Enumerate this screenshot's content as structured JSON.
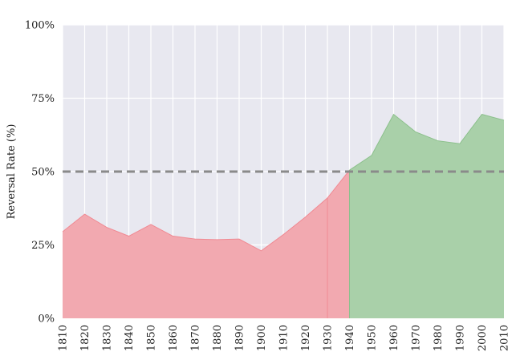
{
  "chart_data": {
    "type": "area",
    "xlabel": "",
    "ylabel": "Reversal Rate (%)",
    "x": [
      1810,
      1820,
      1830,
      1840,
      1850,
      1860,
      1870,
      1880,
      1890,
      1900,
      1910,
      1920,
      1930,
      1940,
      1950,
      1960,
      1970,
      1980,
      1990,
      2000,
      2010
    ],
    "values": [
      29.5,
      35.5,
      31,
      28,
      32,
      28,
      27,
      26.8,
      27,
      23,
      28.5,
      34.5,
      41,
      50.5,
      55.5,
      69.5,
      63.5,
      60.5,
      59.5,
      69.5,
      67.5
    ],
    "ylim": [
      0,
      100
    ],
    "xlim": [
      1810,
      2010
    ],
    "yticks": [
      0,
      25,
      50,
      75,
      100
    ],
    "ytick_labels": [
      "0%",
      "25%",
      "50%",
      "75%",
      "100%"
    ],
    "xticks": [
      1810,
      1820,
      1830,
      1840,
      1850,
      1860,
      1870,
      1880,
      1890,
      1900,
      1910,
      1920,
      1930,
      1940,
      1950,
      1960,
      1970,
      1980,
      1990,
      2000,
      2010
    ],
    "xtick_labels": [
      "1810",
      "1820",
      "1830",
      "1840",
      "1850",
      "1860",
      "1870",
      "1880",
      "1890",
      "1900",
      "1910",
      "1920",
      "1930",
      "1940",
      "1950",
      "1960",
      "1970",
      "1980",
      "1990",
      "2000",
      "2010"
    ],
    "reference_line": 50,
    "split_x": 1940,
    "grid": true,
    "colors": {
      "background": "#e8e8f0",
      "grid": "#ffffff",
      "below_fill": "#f2a9b0",
      "below_edge": "#f08a93",
      "above_fill": "#a9d0a9",
      "above_edge": "#8cc08c",
      "reference_line": "#8a8a8a"
    }
  }
}
